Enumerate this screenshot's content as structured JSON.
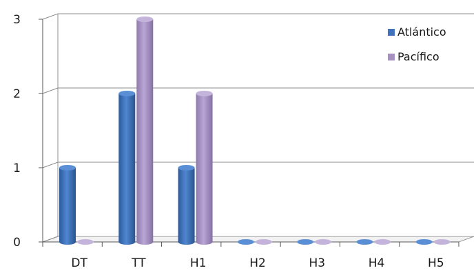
{
  "chart_data": {
    "type": "bar",
    "categories": [
      "DT",
      "TT",
      "H1",
      "H2",
      "H3",
      "H4",
      "H5"
    ],
    "series": [
      {
        "name": "Atlántico",
        "values": [
          1,
          2,
          1,
          0,
          0,
          0,
          0
        ]
      },
      {
        "name": "Pacífico",
        "values": [
          0,
          3,
          2,
          0,
          0,
          0,
          0
        ]
      }
    ],
    "ylim": [
      0,
      3
    ],
    "yticks": [
      "0",
      "1",
      "2",
      "3"
    ],
    "grid": true,
    "legend_position": "top-right",
    "colors": {
      "Atlántico": "#3f72b9",
      "Pacífico": "#a590c0"
    }
  }
}
